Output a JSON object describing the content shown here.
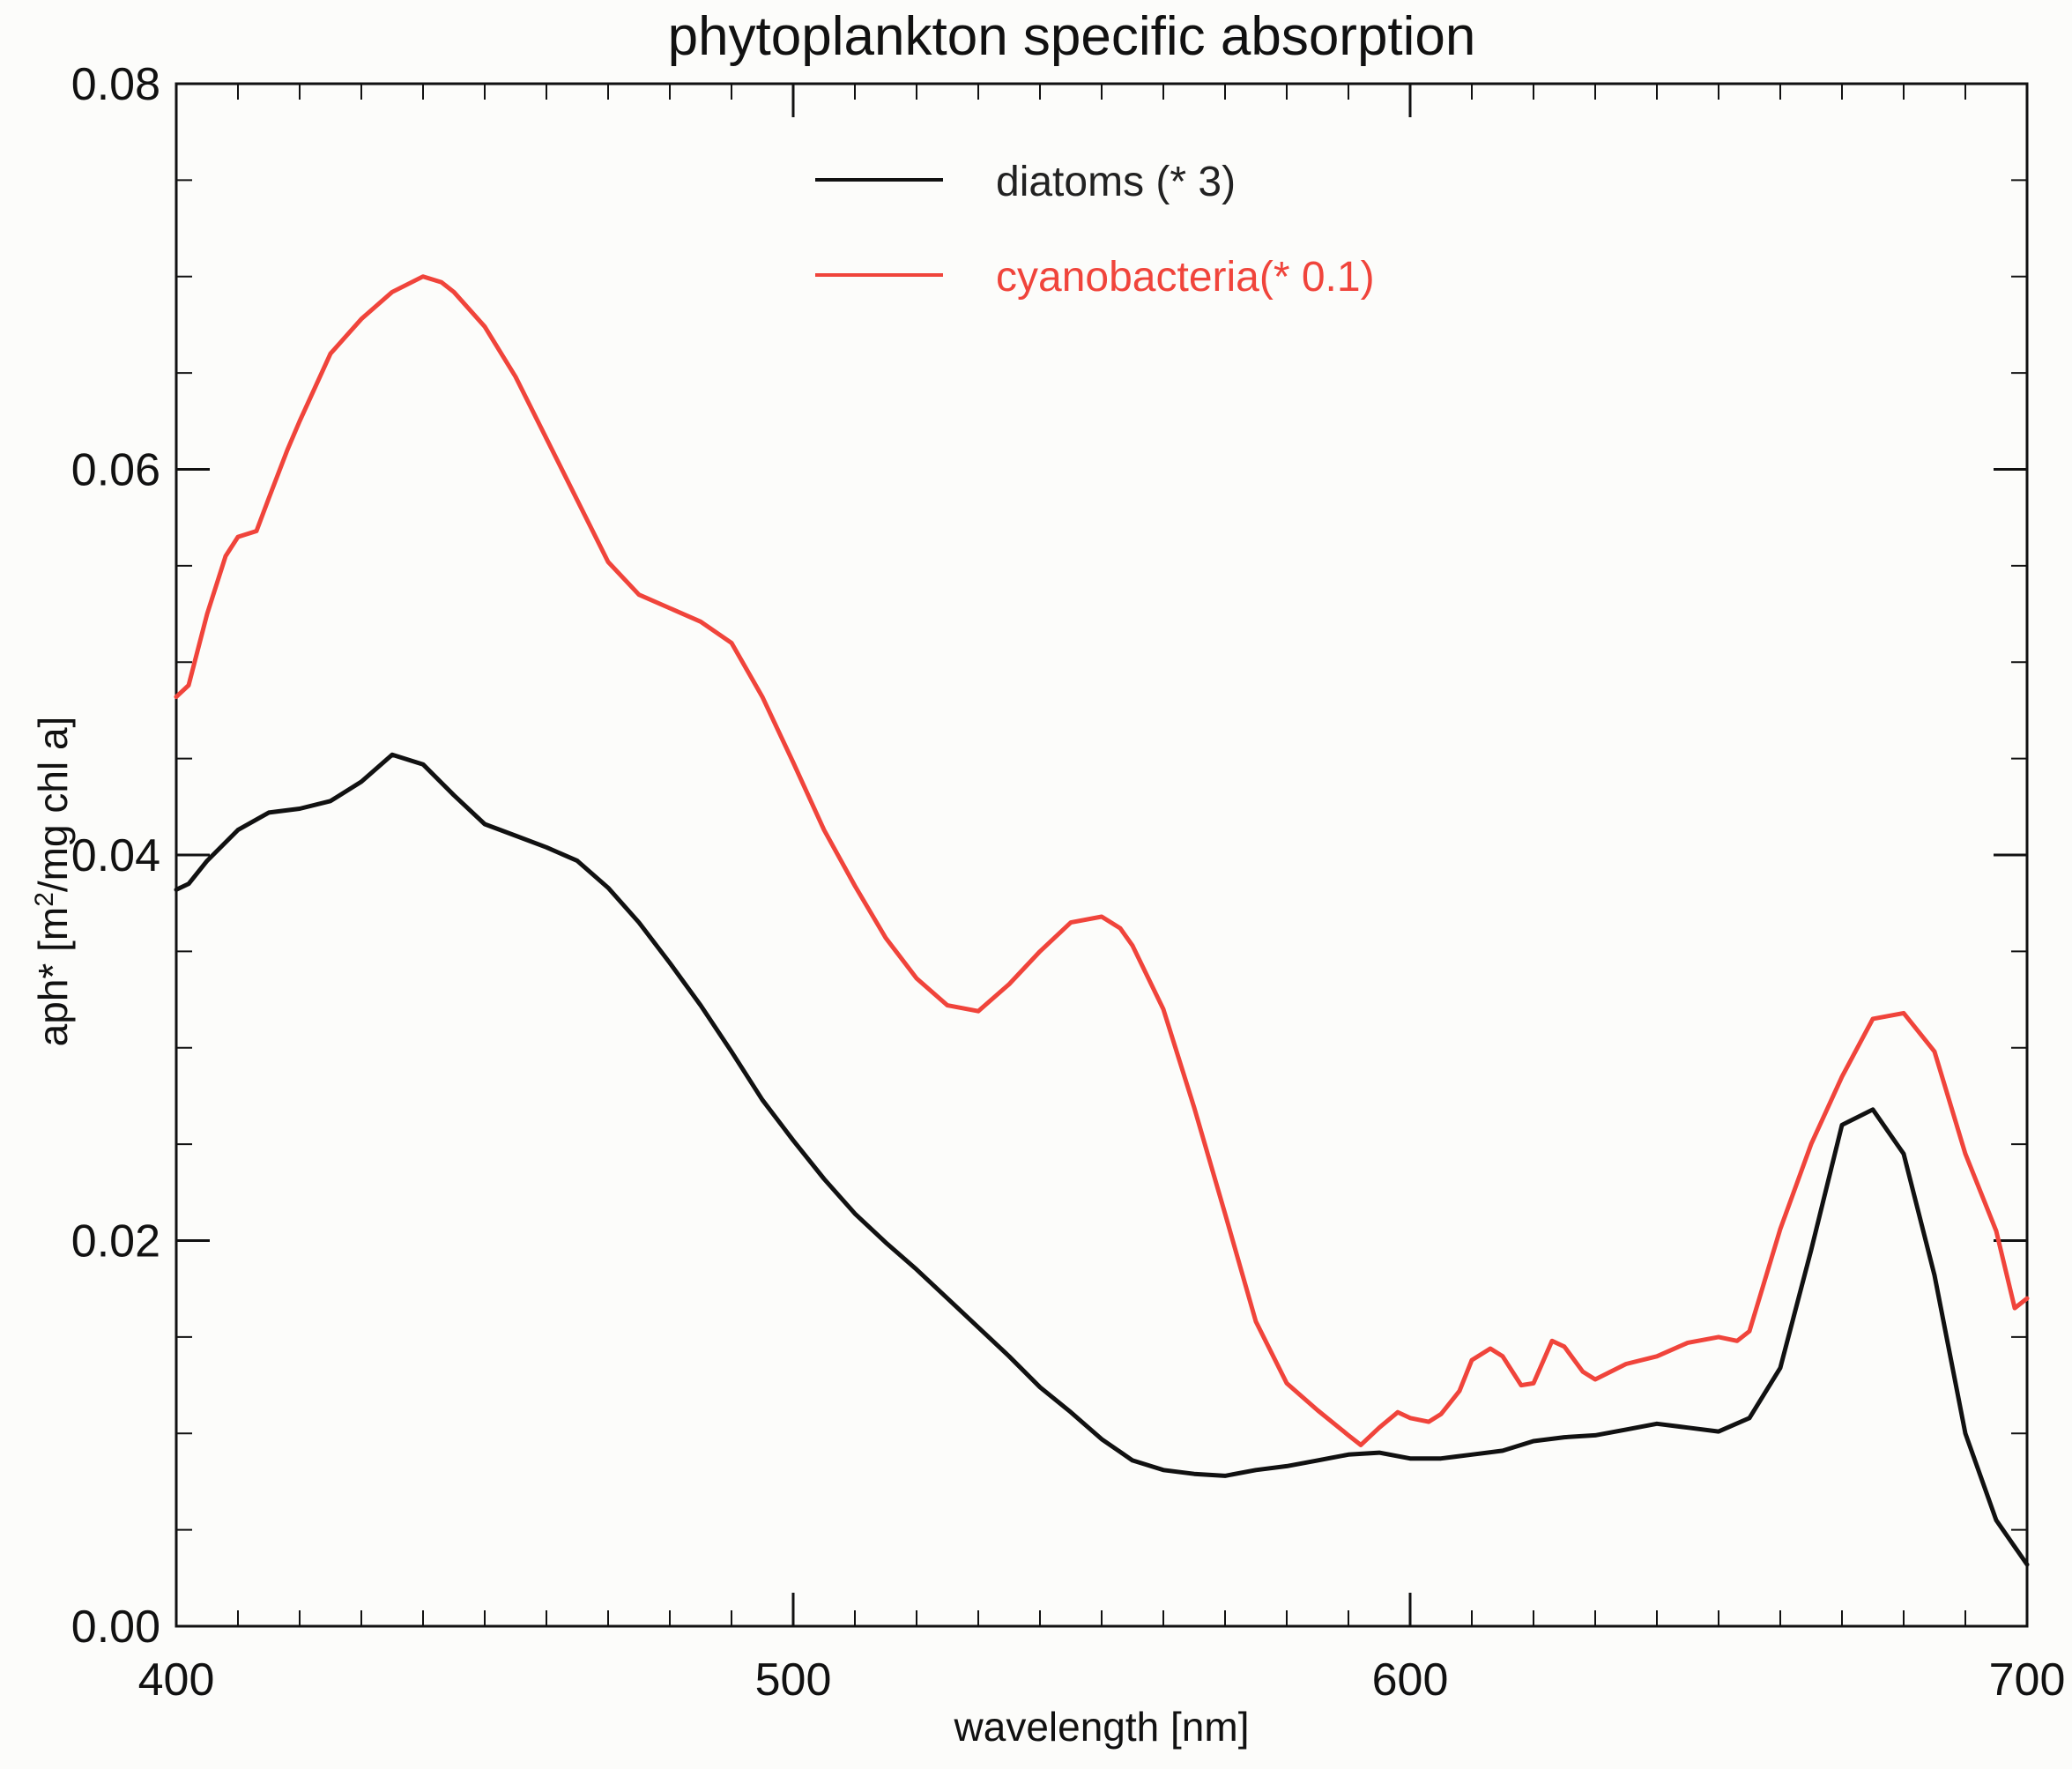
{
  "chart_data": {
    "type": "line",
    "title": "phytoplankton specific absorption",
    "xlabel": "wavelength [nm]",
    "ylabel": {
      "before": "aph* [m",
      "sup": "2",
      "after": "/mg chl a]"
    },
    "xlim": [
      400,
      700
    ],
    "ylim": [
      0,
      0.08
    ],
    "x_ticks": [
      "400",
      "500",
      "600",
      "700"
    ],
    "y_ticks": [
      "0.00",
      "0.02",
      "0.04",
      "0.06",
      "0.08"
    ],
    "x_tick_values": [
      400,
      500,
      600,
      700
    ],
    "y_tick_values": [
      0,
      0.02,
      0.04,
      0.06,
      0.08
    ],
    "x_minor_step": 10,
    "y_minor_step": 0.005,
    "grid": false,
    "legend_position": "top-center",
    "series": [
      {
        "name": "diatoms (* 3)",
        "color": "#111111",
        "x": [
          400,
          402,
          405,
          410,
          415,
          420,
          425,
          430,
          435,
          440,
          445,
          450,
          455,
          460,
          465,
          470,
          475,
          480,
          485,
          490,
          495,
          500,
          505,
          510,
          515,
          520,
          525,
          530,
          535,
          540,
          545,
          550,
          555,
          560,
          565,
          570,
          575,
          580,
          585,
          590,
          595,
          600,
          605,
          610,
          615,
          620,
          625,
          630,
          635,
          640,
          645,
          650,
          655,
          660,
          665,
          670,
          675,
          680,
          685,
          690,
          695,
          700
        ],
        "values": [
          0.0382,
          0.0385,
          0.0397,
          0.0413,
          0.0422,
          0.0424,
          0.0428,
          0.0438,
          0.0452,
          0.0447,
          0.0431,
          0.0416,
          0.041,
          0.0404,
          0.0397,
          0.0383,
          0.0365,
          0.0344,
          0.0322,
          0.0298,
          0.0273,
          0.0252,
          0.0232,
          0.0214,
          0.0199,
          0.0185,
          0.017,
          0.0155,
          0.014,
          0.0124,
          0.0111,
          0.0097,
          0.0086,
          0.0081,
          0.0079,
          0.0078,
          0.0081,
          0.0083,
          0.0086,
          0.0089,
          0.009,
          0.0087,
          0.0087,
          0.0089,
          0.0091,
          0.0096,
          0.0098,
          0.0099,
          0.0102,
          0.0105,
          0.0103,
          0.0101,
          0.0108,
          0.0134,
          0.0195,
          0.026,
          0.0268,
          0.0245,
          0.0182,
          0.01,
          0.0055,
          0.0032
        ]
      },
      {
        "name": "cyanobacteria(* 0.1)",
        "color": "#f0443b",
        "x": [
          400,
          402,
          405,
          408,
          410,
          413,
          415,
          418,
          420,
          425,
          430,
          435,
          440,
          443,
          445,
          450,
          455,
          460,
          465,
          470,
          475,
          480,
          485,
          490,
          495,
          500,
          505,
          510,
          515,
          520,
          525,
          530,
          535,
          540,
          545,
          550,
          553,
          555,
          560,
          565,
          570,
          575,
          580,
          585,
          590,
          592,
          595,
          598,
          600,
          603,
          605,
          608,
          610,
          613,
          615,
          618,
          620,
          623,
          625,
          628,
          630,
          635,
          640,
          645,
          650,
          653,
          655,
          660,
          665,
          670,
          675,
          680,
          685,
          690,
          695,
          698,
          700
        ],
        "values": [
          0.0482,
          0.0488,
          0.0525,
          0.0555,
          0.0565,
          0.0568,
          0.0585,
          0.061,
          0.0625,
          0.066,
          0.0678,
          0.0692,
          0.07,
          0.0697,
          0.0692,
          0.0674,
          0.0648,
          0.0616,
          0.0584,
          0.0552,
          0.0535,
          0.0528,
          0.0521,
          0.051,
          0.0482,
          0.0448,
          0.0413,
          0.0384,
          0.0357,
          0.0336,
          0.0322,
          0.0319,
          0.0333,
          0.035,
          0.0365,
          0.0368,
          0.0362,
          0.0353,
          0.032,
          0.0269,
          0.0214,
          0.0158,
          0.0126,
          0.0112,
          0.0099,
          0.0094,
          0.0103,
          0.0111,
          0.0108,
          0.0106,
          0.011,
          0.0122,
          0.0138,
          0.0144,
          0.014,
          0.0125,
          0.0126,
          0.0148,
          0.0145,
          0.0132,
          0.0128,
          0.0136,
          0.014,
          0.0147,
          0.015,
          0.0148,
          0.0153,
          0.0206,
          0.025,
          0.0285,
          0.0315,
          0.0318,
          0.0298,
          0.0245,
          0.0205,
          0.0165,
          0.017
        ]
      }
    ]
  }
}
